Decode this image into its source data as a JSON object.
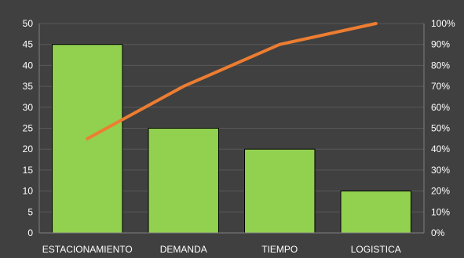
{
  "chart_data": {
    "type": "bar",
    "categories": [
      "ESTACIONAMIENTO",
      "DEMANDA",
      "TIEMPO",
      "LOGISTICA"
    ],
    "values": [
      45,
      25,
      20,
      10
    ],
    "ylim": [
      0,
      50
    ],
    "yticks": [
      "0",
      "5",
      "10",
      "15",
      "20",
      "25",
      "30",
      "35",
      "40",
      "45",
      "50"
    ],
    "secondary_axis": {
      "ylim": [
        0,
        1
      ],
      "ticks": [
        "0%",
        "10%",
        "20%",
        "30%",
        "40%",
        "50%",
        "60%",
        "70%",
        "80%",
        "90%",
        "100%"
      ]
    },
    "line_series": {
      "type": "line",
      "axis": "secondary",
      "values": [
        0.45,
        0.7,
        0.9,
        1.0
      ]
    },
    "grid": true,
    "colors": {
      "background": "#404040",
      "bar_fill": "#92d050",
      "bar_stroke": "#000000",
      "line": "#ed7d31",
      "grid": "#595959",
      "text": "#ffffff"
    }
  }
}
